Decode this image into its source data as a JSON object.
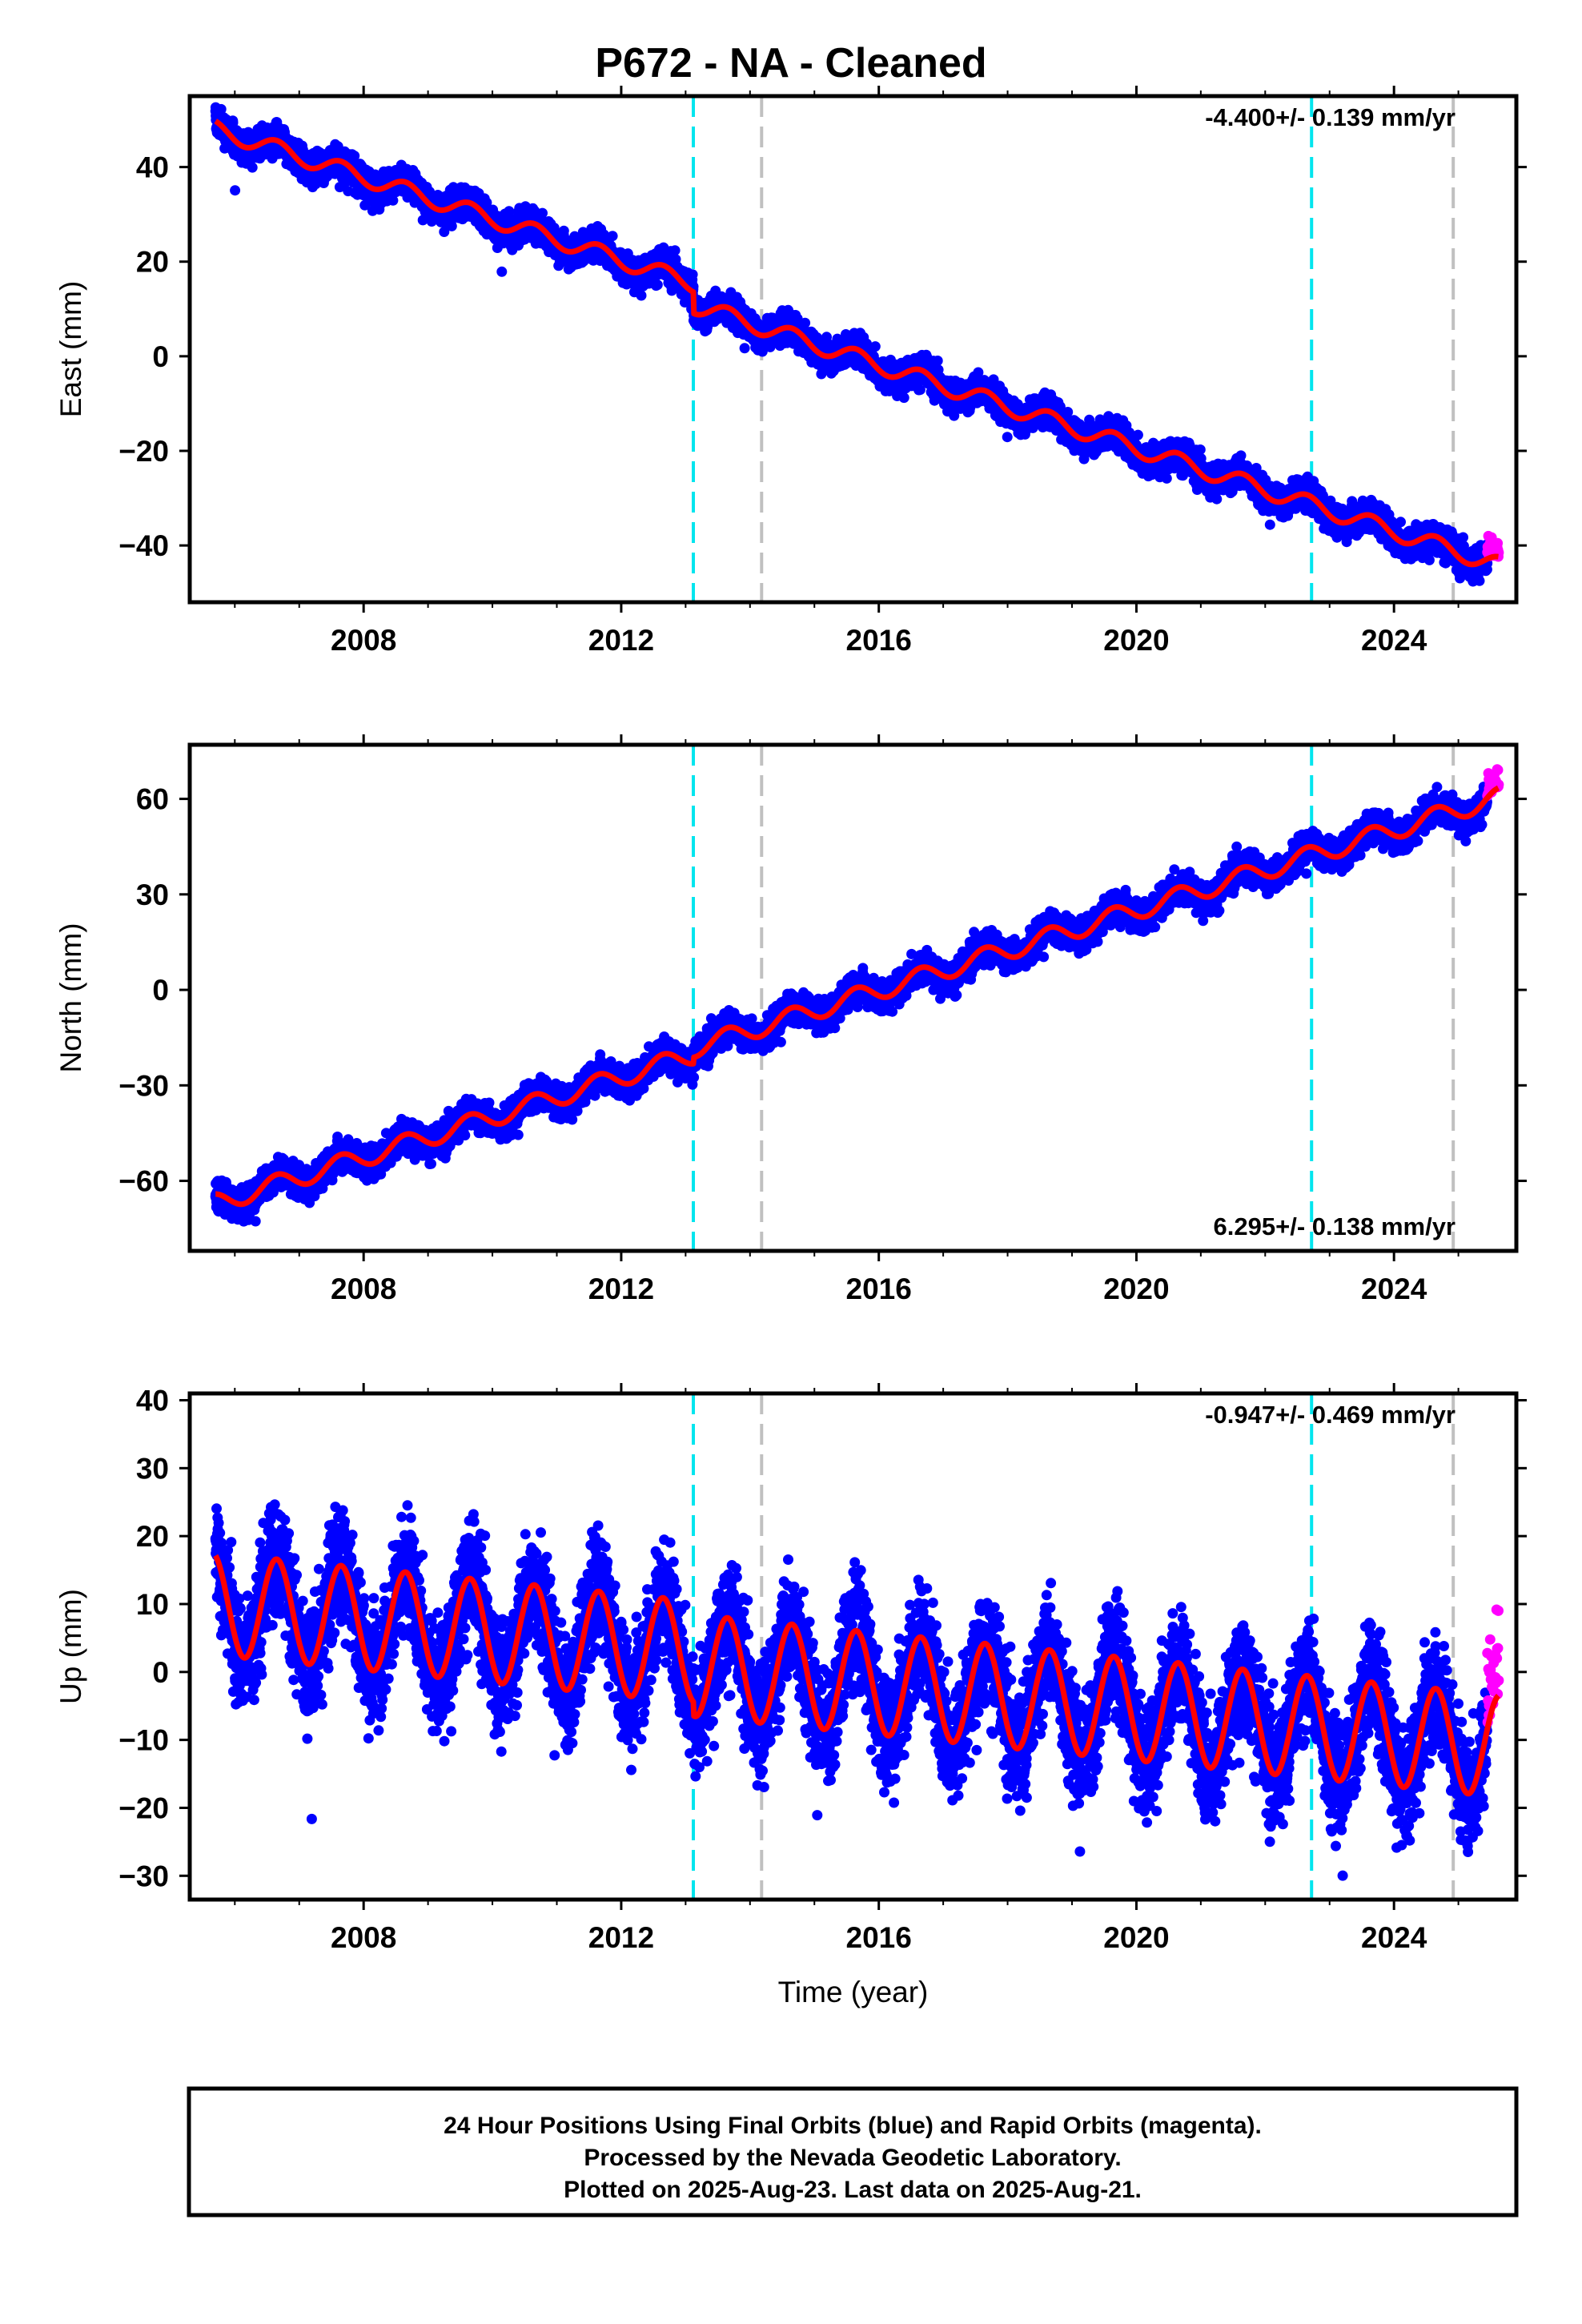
{
  "title": "P672  - NA - Cleaned",
  "colors": {
    "final_orbits": "#0000ff",
    "rapid_orbits": "#ff00ff",
    "model_fit": "#ff0000",
    "steps_cyan": "#00e5ee",
    "steps_gray": "#c0c0c0"
  },
  "caption": {
    "line1": "24 Hour Positions Using Final Orbits (blue) and Rapid Orbits (magenta).",
    "line2": "Processed by the Nevada Geodetic Laboratory.",
    "line3": "Plotted on 2025-Aug-23. Last data on 2025-Aug-21."
  },
  "chart_data": [
    {
      "type": "scatter",
      "component": "east",
      "ylabel": "East (mm)",
      "xlabel": "",
      "xlim": [
        2005.3,
        2025.9
      ],
      "ylim": [
        -52,
        55
      ],
      "xticks": [
        "2008",
        "2012",
        "2016",
        "2020",
        "2024"
      ],
      "yticks": [
        "-40",
        "-20",
        "0",
        "20",
        "40"
      ],
      "rate_text": "-4.400+/- 0.139 mm/yr",
      "rate_position": "top-right",
      "vertical_lines": [
        {
          "x": 2013.12,
          "color": "cyan"
        },
        {
          "x": 2014.18,
          "color": "gray"
        },
        {
          "x": 2022.72,
          "color": "cyan"
        },
        {
          "x": 2024.92,
          "color": "gray"
        }
      ],
      "model": {
        "start": 2005.7,
        "end": 2025.62,
        "start_value": 48.0,
        "rate": -4.4,
        "annual_amplitude": 1.8,
        "annual_phase_year": 0.65,
        "steps": [
          {
            "x": 2013.12,
            "offset": -4.5
          }
        ],
        "scatter": 1.6
      },
      "series": [
        {
          "label": "final-orbits",
          "x_range": [
            2005.7,
            2025.45
          ],
          "color": "#0000ff"
        },
        {
          "label": "rapid-orbits",
          "x_range": [
            2025.45,
            2025.63
          ],
          "color": "#ff00ff"
        },
        {
          "label": "model-fit",
          "x_range": [
            2005.7,
            2025.62
          ],
          "color": "#ff0000"
        }
      ]
    },
    {
      "type": "scatter",
      "component": "north",
      "ylabel": "North (mm)",
      "xlabel": "",
      "xlim": [
        2005.3,
        2025.9
      ],
      "ylim": [
        -82,
        77
      ],
      "xticks": [
        "2008",
        "2012",
        "2016",
        "2020",
        "2024"
      ],
      "yticks": [
        "-60",
        "-30",
        "0",
        "30",
        "60"
      ],
      "rate_text": "6.295+/- 0.138 mm/yr",
      "rate_position": "bottom-right",
      "vertical_lines": [
        {
          "x": 2013.12,
          "color": "cyan"
        },
        {
          "x": 2014.18,
          "color": "gray"
        },
        {
          "x": 2022.72,
          "color": "cyan"
        },
        {
          "x": 2024.92,
          "color": "gray"
        }
      ],
      "model": {
        "start": 2005.7,
        "end": 2025.62,
        "start_value": -67.0,
        "rate": 6.3,
        "annual_amplitude": 3.0,
        "annual_phase_year": 0.65,
        "steps": [
          {
            "x": 2013.12,
            "offset": 2.0
          }
        ],
        "scatter": 2.4
      },
      "series": [
        {
          "label": "final-orbits",
          "x_range": [
            2005.7,
            2025.45
          ],
          "color": "#0000ff"
        },
        {
          "label": "rapid-orbits",
          "x_range": [
            2025.45,
            2025.63
          ],
          "color": "#ff00ff"
        },
        {
          "label": "model-fit",
          "x_range": [
            2005.7,
            2025.62
          ],
          "color": "#ff0000"
        }
      ]
    },
    {
      "type": "scatter",
      "component": "up",
      "ylabel": "Up (mm)",
      "xlabel": "Time (year)",
      "xlim": [
        2005.3,
        2025.9
      ],
      "ylim": [
        -33.5,
        41
      ],
      "xticks": [
        "2008",
        "2012",
        "2016",
        "2020",
        "2024"
      ],
      "yticks": [
        "-30",
        "-20",
        "-10",
        "0",
        "10",
        "20",
        "30",
        "40"
      ],
      "rate_text": "-0.947+/- 0.469 mm/yr",
      "rate_position": "top-right",
      "vertical_lines": [
        {
          "x": 2013.12,
          "color": "cyan"
        },
        {
          "x": 2014.18,
          "color": "gray"
        },
        {
          "x": 2022.72,
          "color": "cyan"
        },
        {
          "x": 2024.92,
          "color": "gray"
        }
      ],
      "model": {
        "start": 2005.7,
        "end": 2025.62,
        "start_value": 10.0,
        "rate": -0.947,
        "annual_amplitude": 7.5,
        "annual_phase_year": 0.65,
        "steps": [
          {
            "x": 2013.12,
            "offset": -2.0
          }
        ],
        "scatter": 4.2
      },
      "series": [
        {
          "label": "final-orbits",
          "x_range": [
            2005.7,
            2025.45
          ],
          "color": "#0000ff"
        },
        {
          "label": "rapid-orbits",
          "x_range": [
            2025.45,
            2025.63
          ],
          "color": "#ff00ff"
        },
        {
          "label": "model-fit",
          "x_range": [
            2005.7,
            2025.62
          ],
          "color": "#ff0000"
        }
      ]
    }
  ]
}
